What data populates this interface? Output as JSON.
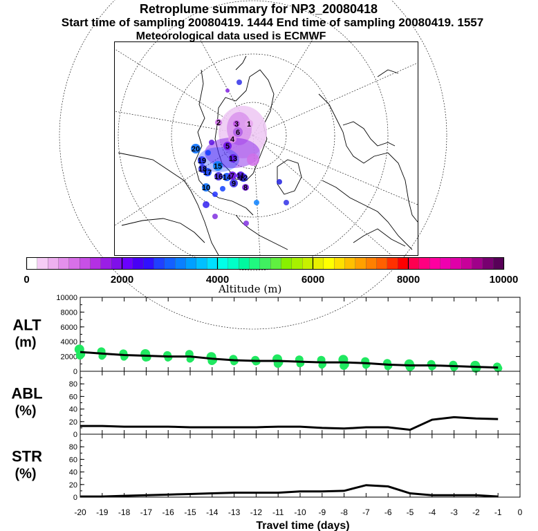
{
  "header": {
    "title": "Retroplume summary for NP3_20080418",
    "sampling": "Start time of sampling 20080419.  1444     End time of sampling 20080419.  1557",
    "met": "Meteorological data used is ECMWF"
  },
  "colorbar": {
    "label": "Altitude (m)",
    "ticks": [
      "0",
      "2000",
      "4000",
      "6000",
      "8000",
      "10000"
    ],
    "colors": [
      "#ffffff",
      "#f6ccf6",
      "#eeb0f0",
      "#e490ec",
      "#d870e8",
      "#c850e6",
      "#b430e4",
      "#9a1ee6",
      "#7f10ea",
      "#6a00ff",
      "#4800f5",
      "#3010ff",
      "#2040ff",
      "#1460ff",
      "#0a80ff",
      "#00a0ff",
      "#00c0ff",
      "#00e0ff",
      "#00ffe8",
      "#00ffc8",
      "#00f8a0",
      "#20f880",
      "#40f060",
      "#60f040",
      "#88f000",
      "#a8f000",
      "#c8f000",
      "#e8f000",
      "#ffff00",
      "#ffe000",
      "#ffc000",
      "#ffa000",
      "#ff8000",
      "#ff6000",
      "#ff3000",
      "#ff0000",
      "#ff0050",
      "#ff0080",
      "#ff00a0",
      "#f000b0",
      "#e000a8",
      "#c8009a",
      "#a0008a",
      "#780070",
      "#580058"
    ]
  },
  "map": {
    "clusters": [
      {
        "label": "20",
        "color": "#0a70ff"
      },
      {
        "label": "19",
        "color": "#2030ff"
      },
      {
        "label": "18",
        "color": "#3030e8"
      },
      {
        "label": "17",
        "color": "#1040ff"
      },
      {
        "label": "16",
        "color": "#4020e0"
      },
      {
        "label": "15",
        "color": "#0a80ff"
      },
      {
        "label": "14",
        "color": "#1050ff"
      },
      {
        "label": "13",
        "color": "#5a10e0"
      },
      {
        "label": "12",
        "color": "#2a30ff"
      },
      {
        "label": "11",
        "color": "#4a10e8"
      },
      {
        "label": "10",
        "color": "#0a70ff"
      },
      {
        "label": "9",
        "color": "#3a30e8"
      },
      {
        "label": "8",
        "color": "#7a20e0"
      },
      {
        "label": "7",
        "color": "#6a10e8"
      },
      {
        "label": "6",
        "color": "#b060e6"
      },
      {
        "label": "5",
        "color": "#7010e8"
      },
      {
        "label": "4",
        "color": "#e090ec"
      },
      {
        "label": "3",
        "color": "#c050e6"
      },
      {
        "label": "2",
        "color": "#d070e8"
      },
      {
        "label": "1",
        "color": "#e8a8f0"
      }
    ]
  },
  "chart_data": [
    {
      "type": "scatter",
      "name": "ALT",
      "ylabel_line1": "ALT",
      "ylabel_line2": "(m)",
      "ylim": [
        0,
        10000
      ],
      "yticks": [
        "10000",
        "8000",
        "6000",
        "4000",
        "2000",
        "0"
      ],
      "x": [
        -20,
        -19,
        -18,
        -17,
        -16,
        -15,
        -14,
        -13,
        -12,
        -11,
        -10,
        -9,
        -8,
        -7,
        -6,
        -5,
        -4,
        -3,
        -2,
        -1
      ],
      "line": [
        2600,
        2400,
        2200,
        2100,
        2000,
        2000,
        1700,
        1500,
        1400,
        1400,
        1300,
        1200,
        1200,
        1100,
        900,
        800,
        800,
        700,
        600,
        500
      ],
      "point_color": "#20e860"
    },
    {
      "type": "line",
      "name": "ABL",
      "ylabel_line1": "ABL",
      "ylabel_line2": "(%)",
      "ylim": [
        0,
        100
      ],
      "yticks": [
        "80",
        "60",
        "40",
        "20",
        "0"
      ],
      "x": [
        -20,
        -19,
        -18,
        -17,
        -16,
        -15,
        -14,
        -13,
        -12,
        -11,
        -10,
        -9,
        -8,
        -7,
        -6,
        -5,
        -4,
        -3,
        -2,
        -1
      ],
      "values": [
        13,
        13,
        12,
        12,
        12,
        11,
        11,
        11,
        11,
        12,
        12,
        10,
        9,
        11,
        11,
        7,
        23,
        27,
        25,
        24
      ]
    },
    {
      "type": "line",
      "name": "STR",
      "ylabel_line1": "STR",
      "ylabel_line2": "(%)",
      "ylim": [
        0,
        100
      ],
      "yticks": [
        "80",
        "60",
        "40",
        "20",
        "0"
      ],
      "x": [
        -20,
        -19,
        -18,
        -17,
        -16,
        -15,
        -14,
        -13,
        -12,
        -11,
        -10,
        -9,
        -8,
        -7,
        -6,
        -5,
        -4,
        -3,
        -2,
        -1
      ],
      "values": [
        1,
        1,
        2,
        3,
        4,
        5,
        6,
        7,
        7,
        7,
        9,
        9,
        10,
        19,
        17,
        6,
        3,
        3,
        3,
        1
      ]
    }
  ],
  "xaxis": {
    "label": "Travel time (days)",
    "ticks": [
      "-20",
      "-19",
      "-18",
      "-17",
      "-16",
      "-15",
      "-14",
      "-13",
      "-12",
      "-11",
      "-10",
      "-9",
      "-8",
      "-7",
      "-6",
      "-5",
      "-4",
      "-3",
      "-2",
      "-1",
      "0"
    ]
  }
}
